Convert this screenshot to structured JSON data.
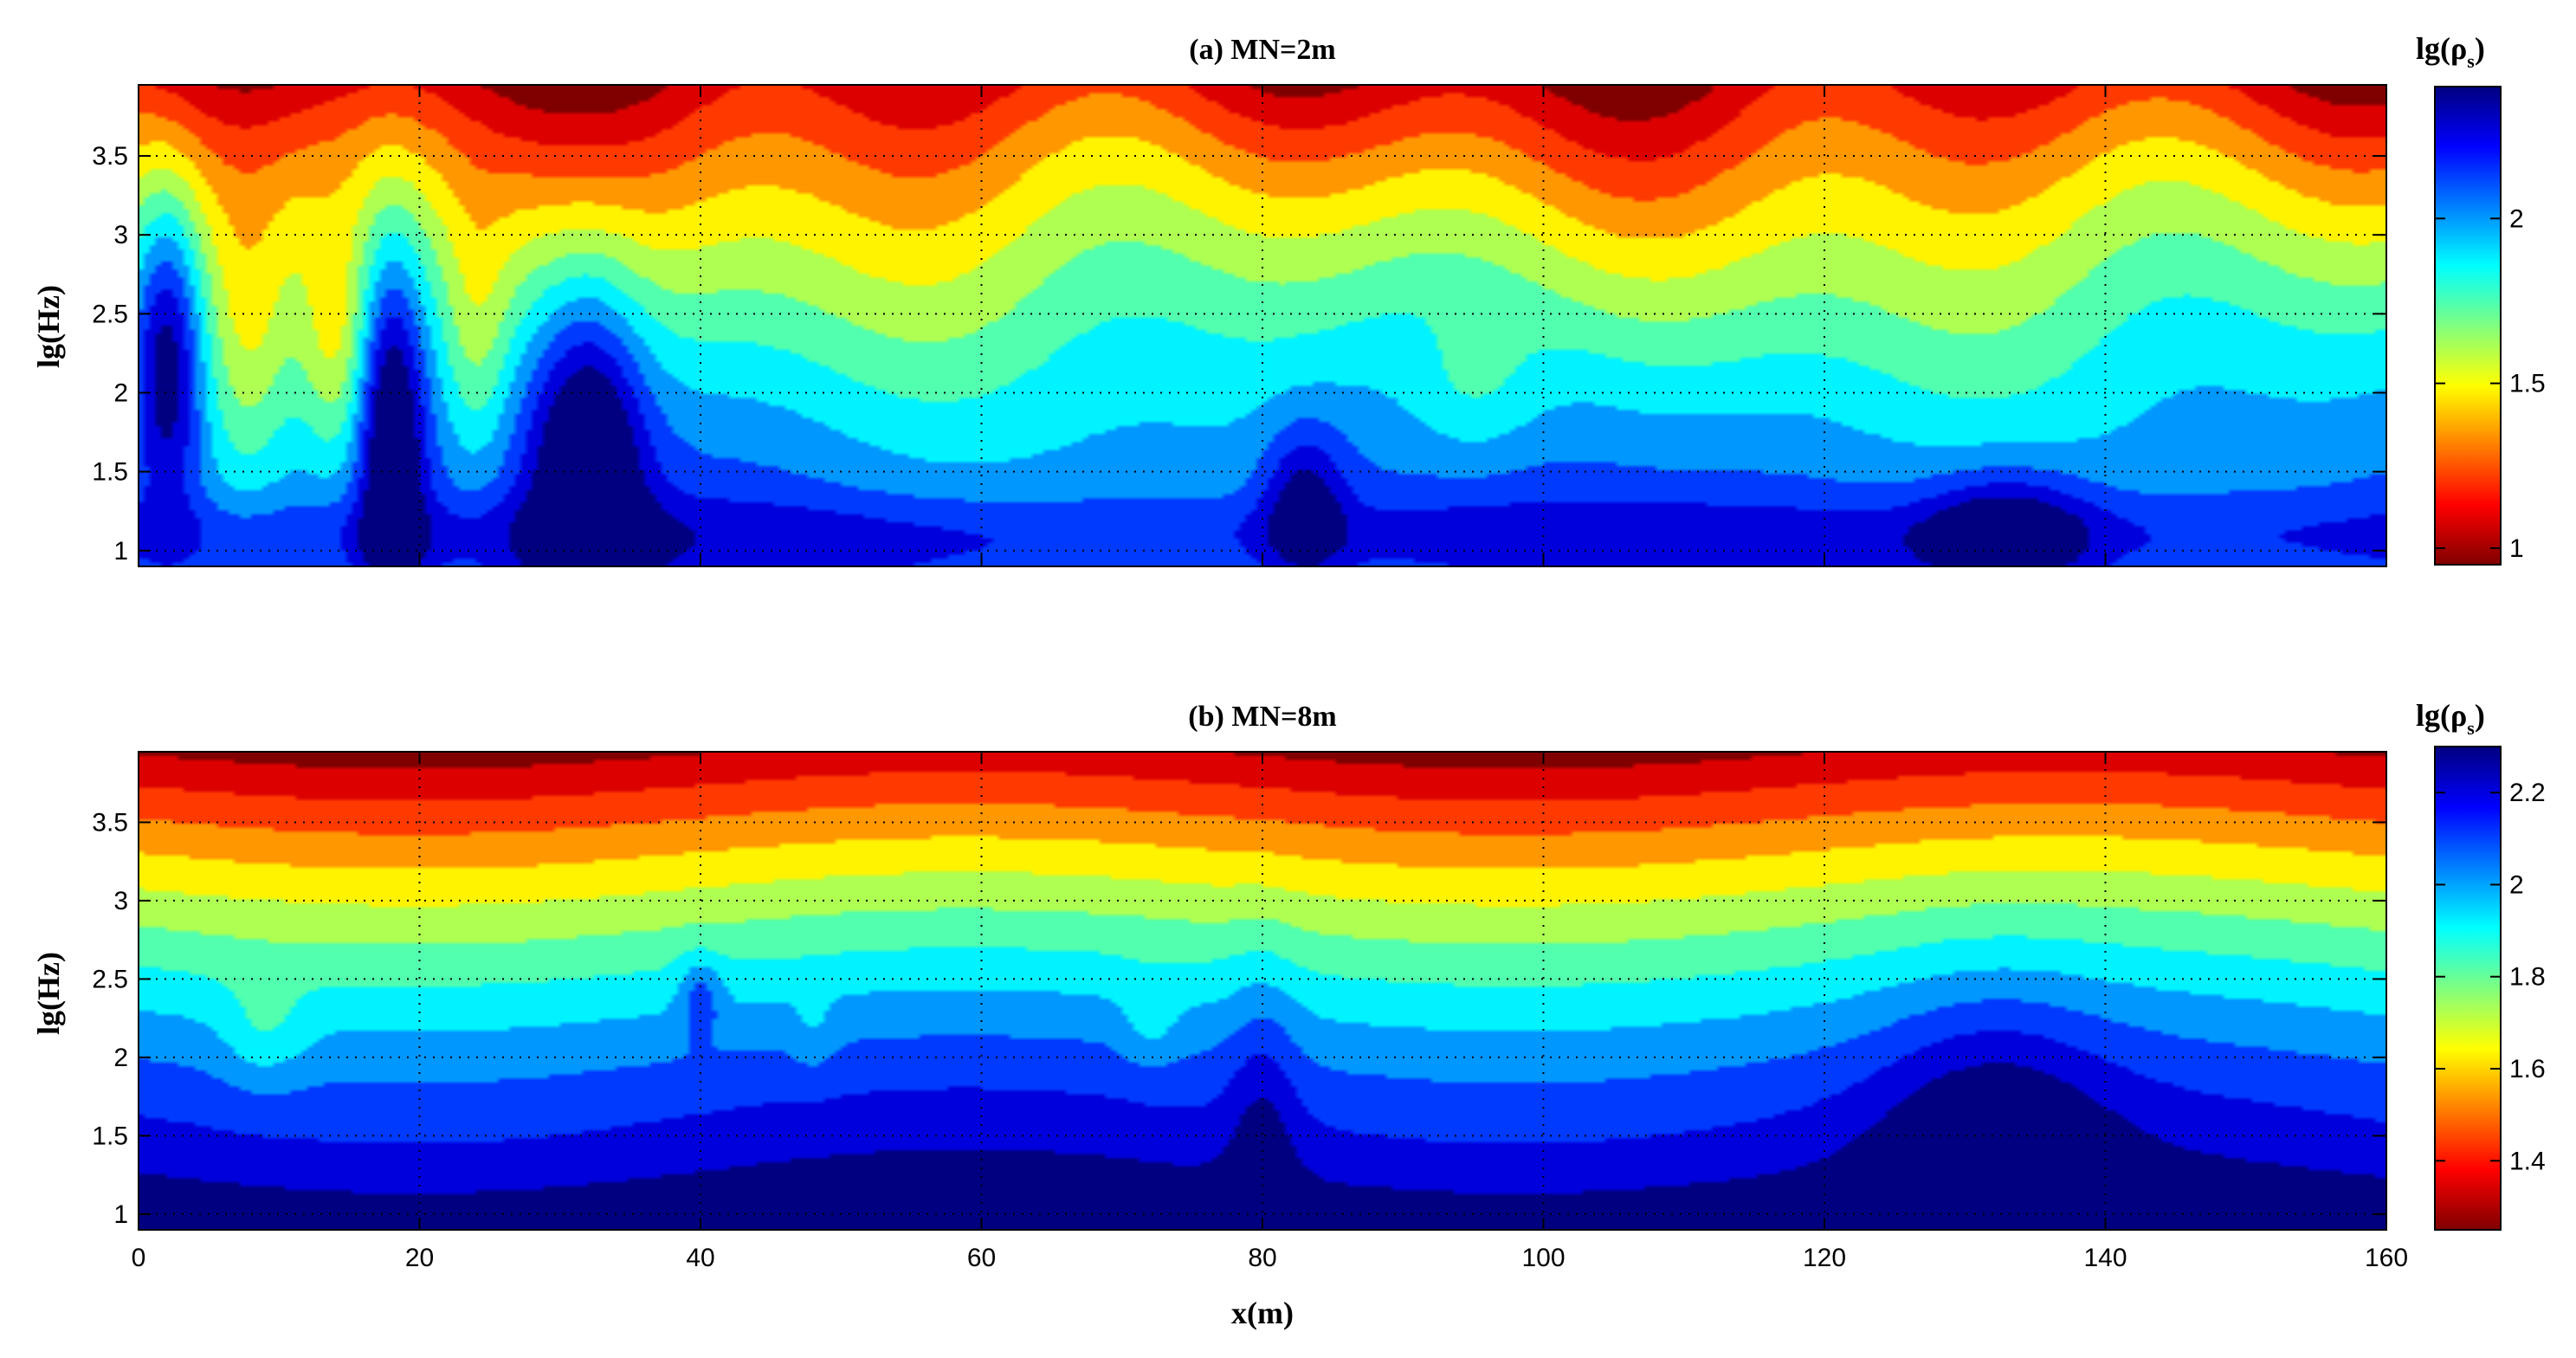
{
  "figure": {
    "xlabel": "x(m)",
    "x_ticks": [
      "0",
      "20",
      "40",
      "60",
      "80",
      "100",
      "120",
      "140",
      "160"
    ]
  },
  "chart_data": [
    {
      "type": "heatmap",
      "title": "(a) MN=2m",
      "xlabel": "x(m)",
      "ylabel": "lg(Hz)",
      "xlim": [
        0,
        160
      ],
      "ylim": [
        0.9,
        3.95
      ],
      "y_ticks": [
        "1",
        "1.5",
        "2",
        "2.5",
        "3",
        "3.5"
      ],
      "colorbar": {
        "label_main": "lg(ρ",
        "label_sub": "s",
        "label_close": ")",
        "range": [
          0.95,
          2.4
        ],
        "ticks": [
          "1",
          "1.5",
          "2"
        ]
      },
      "grid": "dotted",
      "anomalies": [
        {
          "x": 2,
          "y": 2.3,
          "w": 2.5,
          "h": 1.0,
          "v": -0.55
        },
        {
          "x": 18,
          "y": 1.7,
          "w": 2.2,
          "h": 1.2,
          "v": -0.5
        },
        {
          "x": 32,
          "y": 1.6,
          "w": 4.0,
          "h": 1.2,
          "v": -0.55
        },
        {
          "x": 8,
          "y": 2.3,
          "w": 3.0,
          "h": 0.9,
          "v": 0.25
        },
        {
          "x": 14,
          "y": 2.3,
          "w": 2.5,
          "h": 0.8,
          "v": 0.35
        },
        {
          "x": 24,
          "y": 2.3,
          "w": 2.5,
          "h": 0.9,
          "v": 0.25
        },
        {
          "x": 83,
          "y": 1.3,
          "w": 3.0,
          "h": 0.5,
          "v": -0.35
        },
        {
          "x": 95,
          "y": 2.0,
          "w": 5.0,
          "h": 0.5,
          "v": 0.2
        },
        {
          "x": 133,
          "y": 1.1,
          "w": 6.0,
          "h": 0.4,
          "v": -0.4
        }
      ]
    },
    {
      "type": "heatmap",
      "title": "(b) MN=8m",
      "xlabel": "x(m)",
      "ylabel": "lg(Hz)",
      "xlim": [
        0,
        160
      ],
      "ylim": [
        0.9,
        3.95
      ],
      "y_ticks": [
        "1",
        "1.5",
        "2",
        "2.5",
        "3",
        "3.5"
      ],
      "colorbar": {
        "label_main": "lg(ρ",
        "label_sub": "s",
        "label_close": ")",
        "range": [
          1.25,
          2.3
        ],
        "ticks": [
          "1.4",
          "1.6",
          "1.8",
          "2",
          "2.2"
        ]
      },
      "grid": "dotted",
      "anomalies": [
        {
          "x": 80,
          "y": 1.6,
          "w": 2.5,
          "h": 1.0,
          "v": -0.12
        },
        {
          "x": 132,
          "y": 1.4,
          "w": 8.0,
          "h": 1.0,
          "v": -0.18
        },
        {
          "x": 40,
          "y": 2.4,
          "w": 1.5,
          "h": 0.25,
          "v": -0.15
        },
        {
          "x": 9,
          "y": 2.15,
          "w": 3.0,
          "h": 0.35,
          "v": 0.1
        },
        {
          "x": 72,
          "y": 2.2,
          "w": 2.0,
          "h": 0.3,
          "v": 0.08
        },
        {
          "x": 48,
          "y": 2.15,
          "w": 1.5,
          "h": 0.3,
          "v": 0.06
        }
      ]
    }
  ]
}
